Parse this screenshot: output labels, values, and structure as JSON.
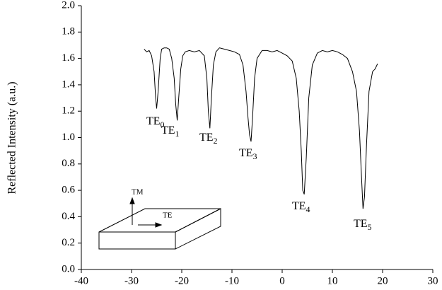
{
  "chart_data": {
    "type": "line",
    "y_label": "Reflected Intensity (a.u.)",
    "x": [
      -27.5,
      -27,
      -26.5,
      -26,
      -25.5,
      -25.2,
      -25,
      -24.7,
      -24.3,
      -24,
      -23.5,
      -23,
      -22.5,
      -22,
      -21.5,
      -21.2,
      -20.9,
      -20.6,
      -20.2,
      -19.8,
      -19.3,
      -18.5,
      -17.5,
      -16.5,
      -15.5,
      -15,
      -14.7,
      -14.4,
      -14.1,
      -13.7,
      -13.2,
      -12.5,
      -11.5,
      -10.5,
      -9.5,
      -8.5,
      -7.8,
      -7.2,
      -6.8,
      -6.5,
      -6.2,
      -5.9,
      -5.5,
      -5,
      -4,
      -3,
      -2,
      -1,
      0,
      1,
      2,
      2.8,
      3.4,
      3.8,
      4.1,
      4.4,
      4.8,
      5.3,
      6,
      7,
      8,
      9,
      10,
      11,
      12,
      13,
      14,
      14.8,
      15.4,
      15.8,
      16.1,
      16.4,
      16.8,
      17.3,
      18,
      18.5,
      19
    ],
    "series": [
      {
        "color": "#000000",
        "values": [
          1.67,
          1.65,
          1.66,
          1.62,
          1.5,
          1.3,
          1.22,
          1.35,
          1.6,
          1.67,
          1.68,
          1.68,
          1.67,
          1.6,
          1.45,
          1.25,
          1.13,
          1.3,
          1.52,
          1.62,
          1.65,
          1.66,
          1.65,
          1.66,
          1.62,
          1.45,
          1.2,
          1.07,
          1.3,
          1.55,
          1.65,
          1.68,
          1.67,
          1.66,
          1.65,
          1.63,
          1.55,
          1.35,
          1.15,
          1.02,
          0.97,
          1.15,
          1.45,
          1.6,
          1.66,
          1.66,
          1.65,
          1.66,
          1.64,
          1.62,
          1.58,
          1.45,
          1.2,
          0.9,
          0.6,
          0.57,
          0.85,
          1.3,
          1.55,
          1.64,
          1.66,
          1.65,
          1.66,
          1.65,
          1.63,
          1.6,
          1.5,
          1.35,
          1.05,
          0.7,
          0.46,
          0.55,
          0.95,
          1.35,
          1.5,
          1.52,
          1.56
        ]
      }
    ],
    "xlim": [
      -40,
      30
    ],
    "xticks": [
      -40,
      -30,
      -20,
      -10,
      0,
      10,
      20,
      30
    ],
    "ylim": [
      0,
      2
    ],
    "yticks": [
      {
        "value": 0,
        "label": "0.0"
      },
      0.2,
      0.4,
      0.6,
      0.8,
      {
        "value": 1,
        "label": "1.0"
      },
      1.2,
      1.4,
      1.6,
      1.8,
      {
        "value": 2,
        "label": "2.0"
      }
    ],
    "annotations": [
      {
        "text": "TE",
        "sub": "0"
      },
      {
        "text": "TE",
        "sub": "1"
      },
      {
        "text": "TE",
        "sub": "2"
      },
      {
        "text": "TE",
        "sub": "3"
      },
      {
        "text": "TE",
        "sub": "4"
      },
      {
        "text": "TE",
        "sub": "5"
      }
    ],
    "inset_labels": [
      "TM",
      "TE"
    ]
  }
}
